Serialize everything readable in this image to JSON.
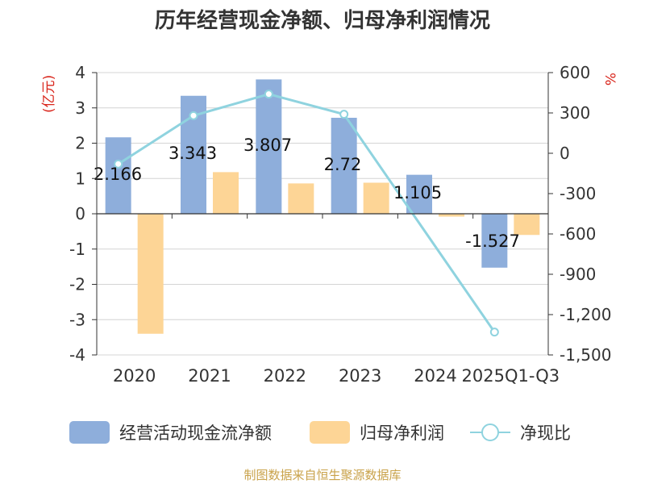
{
  "title": "历年经营现金净额、归母净利润情况",
  "source": "制图数据来自恒生聚源数据库",
  "chart_data": {
    "type": "bar+line",
    "categories": [
      "2020",
      "2021",
      "2022",
      "2023",
      "2024",
      "2025Q1-Q3"
    ],
    "left_axis": {
      "label": "(亿元)",
      "min": -4,
      "max": 4,
      "ticks": [
        "-4",
        "-3",
        "-2",
        "-1",
        "0",
        "1",
        "2",
        "3",
        "4"
      ]
    },
    "right_axis": {
      "label": "%",
      "min": -1500,
      "max": 600,
      "ticks": [
        "-1,500",
        "-1,200",
        "-900",
        "-600",
        "-300",
        "0",
        "300",
        "600"
      ]
    },
    "series": [
      {
        "name": "经营活动现金流净额",
        "kind": "bar",
        "axis": "left",
        "color": "#8eaedb",
        "values": [
          2.166,
          3.343,
          3.807,
          2.72,
          1.105,
          -1.527
        ],
        "labels": [
          "2.166",
          "3.343",
          "3.807",
          "2.72",
          "1.105",
          "-1.527"
        ]
      },
      {
        "name": "归母净利润",
        "kind": "bar",
        "axis": "left",
        "color": "#fdd596",
        "values": [
          -3.4,
          1.18,
          0.86,
          0.88,
          -0.08,
          -0.6
        ]
      },
      {
        "name": "净现比",
        "kind": "line",
        "axis": "right",
        "color": "#8fd3df",
        "values": [
          -80,
          280,
          440,
          290,
          null,
          -1330
        ]
      }
    ]
  },
  "legend": [
    "经营活动现金流净额",
    "归母净利润",
    "净现比"
  ]
}
